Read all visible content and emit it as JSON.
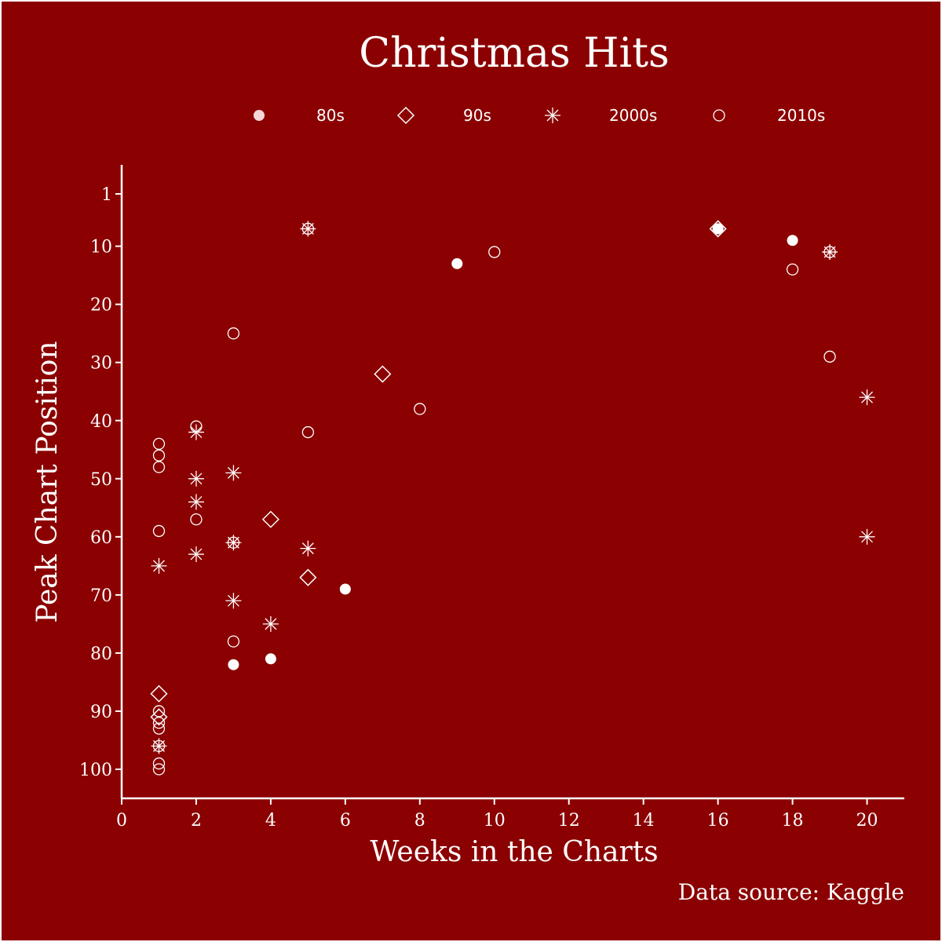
{
  "colors": {
    "background": "#8b0000",
    "foreground": "#ffffff",
    "legend_dot": "#f4d7d7"
  },
  "chart_data": {
    "type": "scatter",
    "title": "Christmas Hits",
    "xlabel": "Weeks in the Charts",
    "ylabel": "Peak Chart Position",
    "caption": "Data source: Kaggle",
    "xlim": [
      0,
      21
    ],
    "ylim": [
      105,
      -4
    ],
    "y_reversed": true,
    "x_ticks": [
      0,
      2,
      4,
      6,
      8,
      10,
      12,
      14,
      16,
      18,
      20
    ],
    "y_ticks": [
      1,
      10,
      20,
      30,
      40,
      50,
      60,
      70,
      80,
      90,
      100
    ],
    "legend_position": "top",
    "grid": false,
    "series": [
      {
        "name": "80s",
        "marker": "filled-circle",
        "points": [
          [
            3,
            82
          ],
          [
            4,
            81
          ],
          [
            6,
            69
          ],
          [
            9,
            13
          ],
          [
            16,
            7
          ],
          [
            18,
            9
          ]
        ]
      },
      {
        "name": "90s",
        "marker": "diamond",
        "points": [
          [
            1,
            87
          ],
          [
            1,
            91
          ],
          [
            4,
            57
          ],
          [
            5,
            67
          ],
          [
            7,
            32
          ],
          [
            16,
            7
          ]
        ]
      },
      {
        "name": "2000s",
        "marker": "asterisk",
        "points": [
          [
            1,
            65
          ],
          [
            1,
            96
          ],
          [
            2,
            42
          ],
          [
            2,
            50
          ],
          [
            2,
            54
          ],
          [
            2,
            63
          ],
          [
            3,
            49
          ],
          [
            3,
            61
          ],
          [
            3,
            71
          ],
          [
            4,
            75
          ],
          [
            5,
            7
          ],
          [
            5,
            62
          ],
          [
            19,
            11
          ],
          [
            20,
            36
          ],
          [
            20,
            60
          ]
        ]
      },
      {
        "name": "2010s",
        "marker": "open-circle",
        "points": [
          [
            1,
            44
          ],
          [
            1,
            46
          ],
          [
            1,
            48
          ],
          [
            1,
            59
          ],
          [
            1,
            90
          ],
          [
            1,
            92
          ],
          [
            1,
            93
          ],
          [
            1,
            96
          ],
          [
            1,
            99
          ],
          [
            1,
            100
          ],
          [
            2,
            41
          ],
          [
            2,
            57
          ],
          [
            3,
            25
          ],
          [
            3,
            61
          ],
          [
            3,
            78
          ],
          [
            5,
            7
          ],
          [
            5,
            42
          ],
          [
            8,
            38
          ],
          [
            10,
            11
          ],
          [
            18,
            14
          ],
          [
            19,
            11
          ],
          [
            19,
            29
          ]
        ]
      }
    ]
  }
}
